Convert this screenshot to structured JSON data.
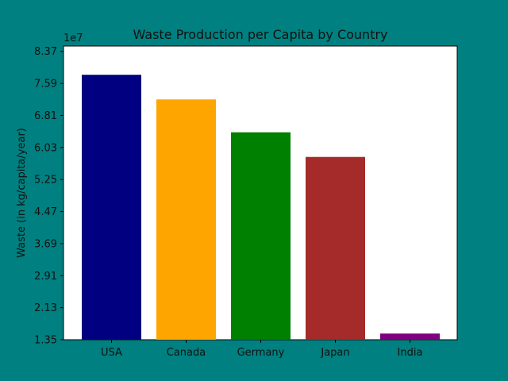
{
  "chart_data": {
    "type": "bar",
    "title": "Waste Production per Capita by Country",
    "xlabel": "",
    "ylabel": "Waste (in kg/capita/year)",
    "y_multiplier_label": "1e7",
    "categories": [
      "USA",
      "Canada",
      "Germany",
      "Japan",
      "India"
    ],
    "values": [
      78000000,
      72000000,
      64000000,
      58000000,
      15000000
    ],
    "colors": [
      "#000080",
      "#FFA500",
      "#008000",
      "#A52A2A",
      "#800080"
    ],
    "ylim": [
      13500000,
      85000000
    ],
    "yticks": [
      13500000,
      21300000,
      29100000,
      36900000,
      44700000,
      52500000,
      60300000,
      68100000,
      75900000,
      83700000
    ],
    "ytick_labels": [
      "1.35",
      "2.13",
      "2.91",
      "3.69",
      "4.47",
      "5.25",
      "6.03",
      "6.81",
      "7.59",
      "8.37"
    ],
    "grid": false,
    "legend": "none"
  },
  "background_color": "#008080",
  "plot_background_color": "#FFFFFF"
}
